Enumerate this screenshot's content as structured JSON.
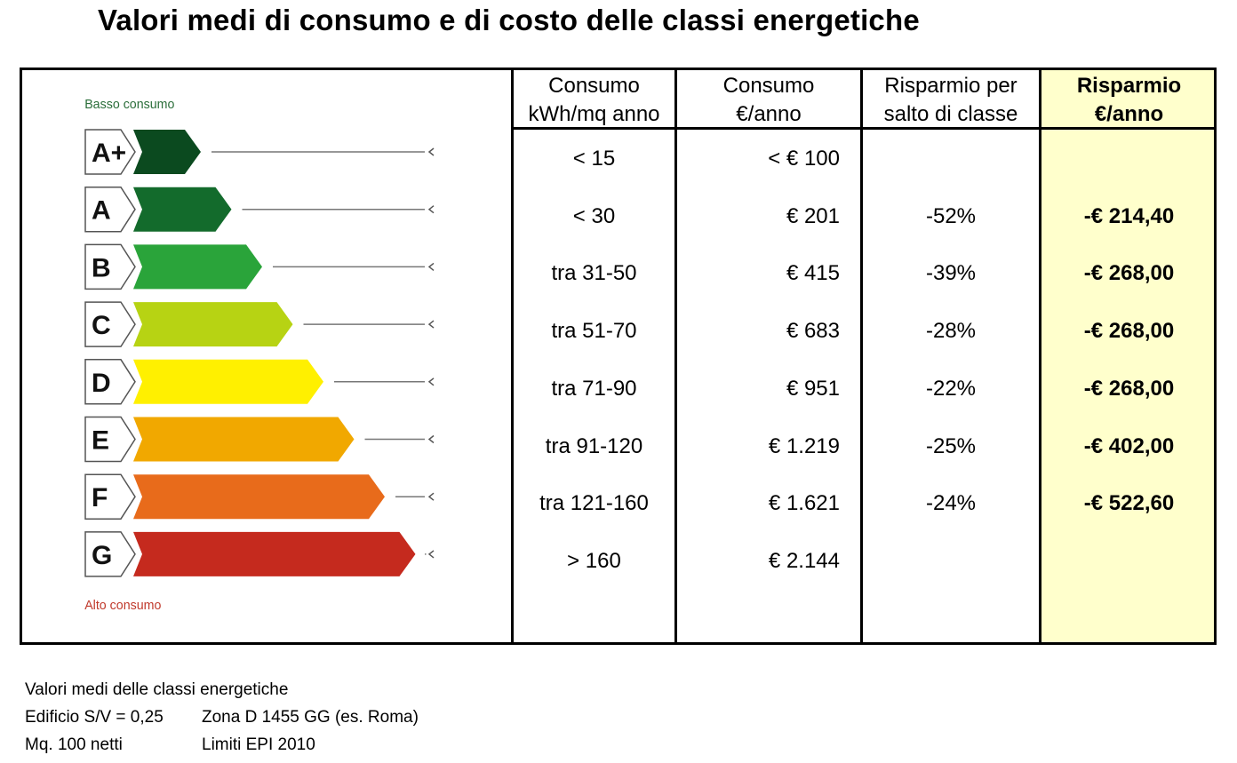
{
  "title": "Valori medi di consumo e di costo delle classi energetiche",
  "energy_scale": {
    "top_label": "Basso consumo",
    "bottom_label": "Alto consumo",
    "classes": [
      {
        "name": "A+",
        "color": "#0b4a1f"
      },
      {
        "name": "A",
        "color": "#136b2c"
      },
      {
        "name": "B",
        "color": "#2aa43a"
      },
      {
        "name": "C",
        "color": "#b7d313"
      },
      {
        "name": "D",
        "color": "#fff000"
      },
      {
        "name": "E",
        "color": "#f1a800"
      },
      {
        "name": "F",
        "color": "#e86b1b"
      },
      {
        "name": "G",
        "color": "#c52a1e"
      }
    ]
  },
  "table": {
    "headers": {
      "consumo_kwh_1": "Consumo",
      "consumo_kwh_2": "kWh/mq anno",
      "consumo_eur_1": "Consumo",
      "consumo_eur_2": "€/anno",
      "risparmio_pct_1": "Risparmio per",
      "risparmio_pct_2": "salto di classe",
      "risparmio_eur_1": "Risparmio",
      "risparmio_eur_2": "€/anno"
    },
    "rows": [
      {
        "kwh": "< 15",
        "eur": "< € 100",
        "pct": "",
        "saving": ""
      },
      {
        "kwh": "< 30",
        "eur": "€ 201",
        "pct": "-52%",
        "saving": "-€ 214,40"
      },
      {
        "kwh": "tra 31-50",
        "eur": "€ 415",
        "pct": "-39%",
        "saving": "-€ 268,00"
      },
      {
        "kwh": "tra 51-70",
        "eur": "€ 683",
        "pct": "-28%",
        "saving": "-€ 268,00"
      },
      {
        "kwh": "tra 71-90",
        "eur": "€ 951",
        "pct": "-22%",
        "saving": "-€ 268,00"
      },
      {
        "kwh": "tra 91-120",
        "eur": "€ 1.219",
        "pct": "-25%",
        "saving": "-€ 402,00"
      },
      {
        "kwh": "tra 121-160",
        "eur": "€ 1.621",
        "pct": "-24%",
        "saving": "-€ 522,60"
      },
      {
        "kwh": "> 160",
        "eur": "€ 2.144",
        "pct": "",
        "saving": ""
      }
    ],
    "highlight_color": "#ffffcc"
  },
  "footer": {
    "line1": "Valori medi delle classi energetiche",
    "line2a": "Edificio S/V = 0,25",
    "line2b": "Zona D 1455 GG (es. Roma)",
    "line3a": "Mq. 100 netti",
    "line3b": "Limiti EPI 2010"
  }
}
